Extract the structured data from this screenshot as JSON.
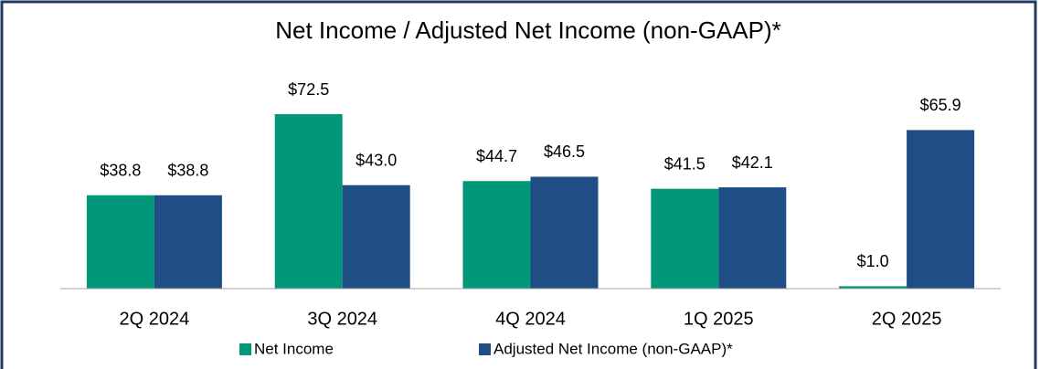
{
  "chart_data": {
    "type": "bar",
    "title": "Net Income / Adjusted Net Income (non-GAAP)*",
    "categories": [
      "2Q 2024",
      "3Q 2024",
      "4Q 2024",
      "1Q 2025",
      "2Q 2025"
    ],
    "series": [
      {
        "name": "Net Income",
        "color": "#009878",
        "values": [
          38.8,
          72.5,
          44.7,
          41.5,
          1.0
        ],
        "value_labels": [
          "$38.8",
          "$72.5",
          "$44.7",
          "$41.5",
          "$1.0"
        ]
      },
      {
        "name": "Adjusted Net Income (non-GAAP)*",
        "color": "#1f4e87",
        "values": [
          38.8,
          43.0,
          46.5,
          42.1,
          65.9
        ],
        "value_labels": [
          "$38.8",
          "$43.0",
          "$46.5",
          "$42.1",
          "$65.9"
        ]
      }
    ]
  }
}
